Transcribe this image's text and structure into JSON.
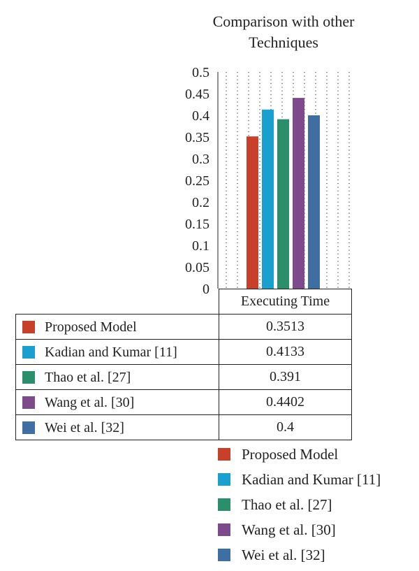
{
  "chart_data": {
    "type": "bar",
    "title": "Comparison with other Techniques",
    "categories": [
      "Executing Time"
    ],
    "series": [
      {
        "name": "Proposed Model",
        "values": [
          0.3513
        ],
        "color": "#c8402a"
      },
      {
        "name": "Kadian and Kumar [11]",
        "values": [
          0.4133
        ],
        "color": "#1aa0cf"
      },
      {
        "name": "Thao et al. [27]",
        "values": [
          0.391
        ],
        "color": "#2a8f6a"
      },
      {
        "name": "Wang et al. [30]",
        "values": [
          0.4402
        ],
        "color": "#7d4a8c"
      },
      {
        "name": "Wei et al. [32]",
        "values": [
          0.4
        ],
        "color": "#3f6ea3"
      }
    ],
    "table_values": [
      "0.3513",
      "0.4133",
      "0.391",
      "0.4402",
      "0.4"
    ],
    "ylim": [
      0,
      0.5
    ],
    "yticks": [
      "0",
      "0.05",
      "0.1",
      "0.15",
      "0.2",
      "0.25",
      "0.3",
      "0.35",
      "0.4",
      "0.45",
      "0.5"
    ],
    "grid": "dotted",
    "legend_position": "bottom-right",
    "xlabel": "",
    "ylabel": ""
  }
}
